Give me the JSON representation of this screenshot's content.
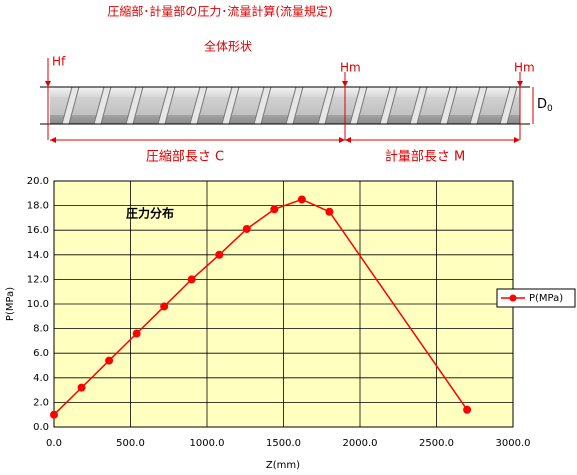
{
  "diagram": {
    "title": "圧縮部･計量部の圧力･流量計算(流量規定)",
    "subtitle": "全体形状",
    "hf_label": "Hf",
    "hm_label_1": "Hm",
    "hm_label_2": "Hm",
    "d_label": {
      "main": "D",
      "sub": "0"
    },
    "compression_label": "圧縮部長さ C",
    "metering_label": "計量部長さ M"
  },
  "chart_data": {
    "type": "line",
    "annotation": "圧力分布",
    "x_label": "Z(mm)",
    "y_label": "P(MPa)",
    "x": [
      0,
      180,
      360,
      540,
      720,
      900,
      1080,
      1260,
      1440,
      1620,
      1800,
      2700
    ],
    "series": [
      {
        "name": "P(MPa)",
        "color": "#ff0000",
        "values": [
          1.0,
          3.2,
          5.4,
          7.6,
          9.8,
          12.0,
          14.0,
          16.1,
          17.7,
          18.5,
          17.5,
          1.4
        ]
      }
    ],
    "xlim": [
      0,
      3000
    ],
    "xticks": [
      {
        "value": 0,
        "label": "0.0"
      },
      {
        "value": 500,
        "label": "500.0"
      },
      {
        "value": 1000,
        "label": "1000.0"
      },
      {
        "value": 1500,
        "label": "1500.0"
      },
      {
        "value": 2000,
        "label": "2000.0"
      },
      {
        "value": 2500,
        "label": "2500.0"
      },
      {
        "value": 3000,
        "label": "3000.0"
      }
    ],
    "ylim": [
      0,
      20
    ],
    "yticks": [
      {
        "value": 0,
        "label": "0.0"
      },
      {
        "value": 2,
        "label": "2.0"
      },
      {
        "value": 4,
        "label": "4.0"
      },
      {
        "value": 6,
        "label": "6.0"
      },
      {
        "value": 8,
        "label": "8.0"
      },
      {
        "value": 10,
        "label": "10.0"
      },
      {
        "value": 12,
        "label": "12.0"
      },
      {
        "value": 14,
        "label": "14.0"
      },
      {
        "value": 16,
        "label": "16.0"
      },
      {
        "value": 18,
        "label": "18.0"
      },
      {
        "value": 20,
        "label": "20.0"
      }
    ],
    "grid": true,
    "plot_background": "#ffffc0",
    "legend": "right"
  }
}
